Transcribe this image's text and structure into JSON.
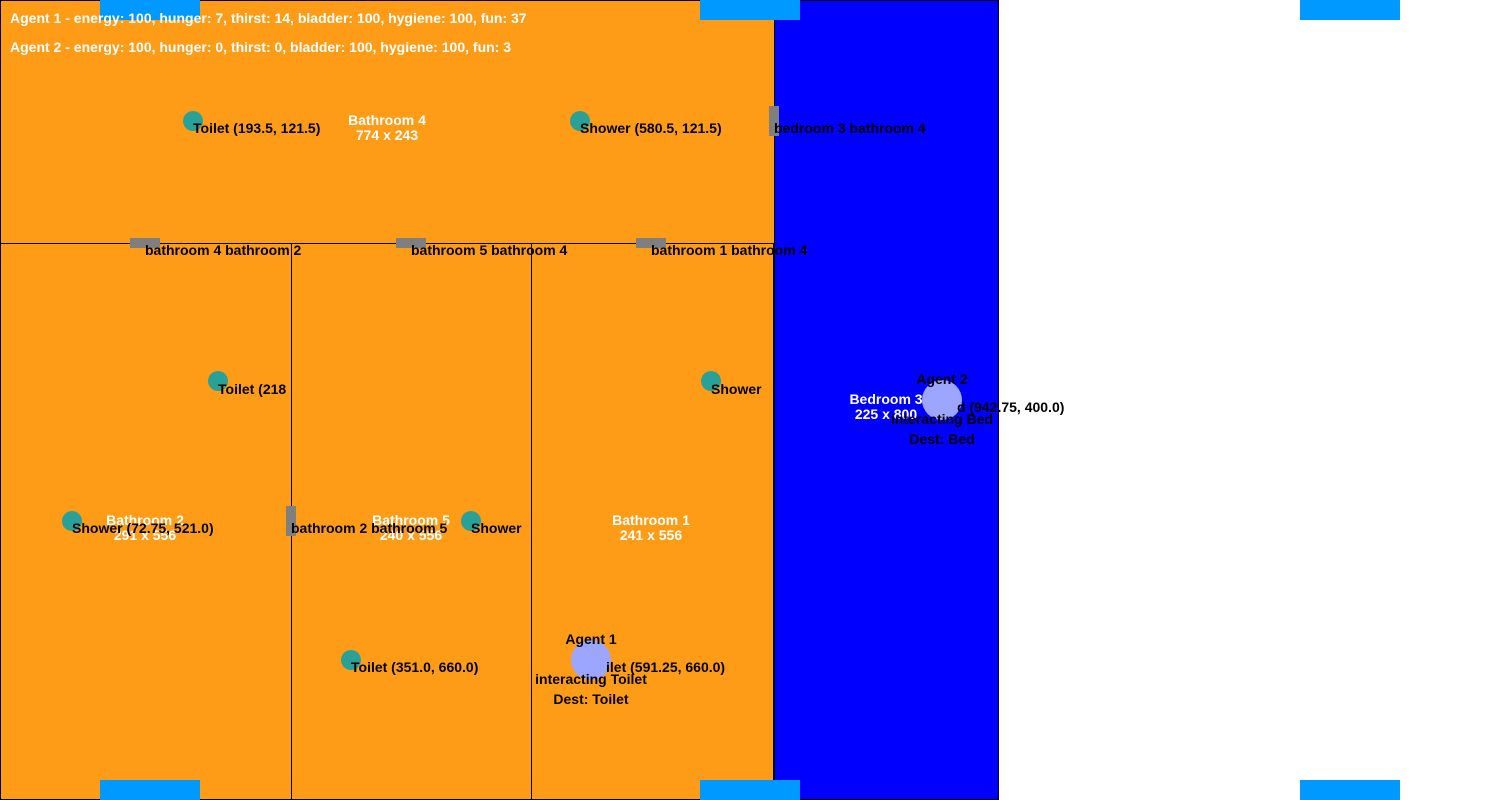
{
  "status": {
    "agent1": "Agent 1 - energy: 100, hunger: 7, thirst: 14, bladder: 100, hygiene: 100, fun: 37",
    "agent2": "Agent 2 - energy: 100, hunger: 0, thirst: 0, bladder: 100, hygiene: 100, fun: 3"
  },
  "rooms": {
    "bathroom4": {
      "name": "Bathroom 4",
      "size": "774 x 243"
    },
    "bathroom2": {
      "name": "Bathroom 2",
      "size": "291 x 556"
    },
    "bathroom5": {
      "name": "Bathroom 5",
      "size": "240 x 556"
    },
    "bathroom1": {
      "name": "Bathroom 1",
      "size": "241 x 556"
    },
    "bedroom3": {
      "name": "Bedroom 3",
      "size": "225 x 800"
    }
  },
  "objects": {
    "toilet_b4": "Toilet (193.5, 121.5)",
    "shower_b4": "Shower (580.5, 121.5)",
    "toilet_b2": "Toilet (218",
    "shower_b2": "Shower (72.75, 521.0)",
    "shower_b5": "Shower",
    "toilet_b5": "Toilet (351.0, 660.0)",
    "shower_b1": "Shower",
    "toilet_b1": "ilet (591.25, 660.0)",
    "bed_b3": "d (942.75, 400.0)"
  },
  "doors": {
    "b3_b4": "bedroom 3 bathroom 4",
    "b4_b2": "bathroom 4 bathroom 2",
    "b5_b4": "bathroom 5 bathroom 4",
    "b1_b4": "bathroom 1 bathroom 4",
    "b2_b5": "bathroom 2 bathroom 5"
  },
  "agents": {
    "agent1": {
      "name": "Agent 1",
      "action": "interacting Toilet",
      "dest": "Dest: Toilet"
    },
    "agent2": {
      "name": "Agent 2",
      "action": "interacting Bed",
      "dest": "Dest: Bed"
    }
  },
  "colors": {
    "room_fill": "#fe9c18",
    "bedroom_fill": "#0000ff",
    "object_dot": "#2aa198",
    "agent_dot": "#9da6ff",
    "door": "#7f7f7f",
    "window": "#0099ff"
  }
}
